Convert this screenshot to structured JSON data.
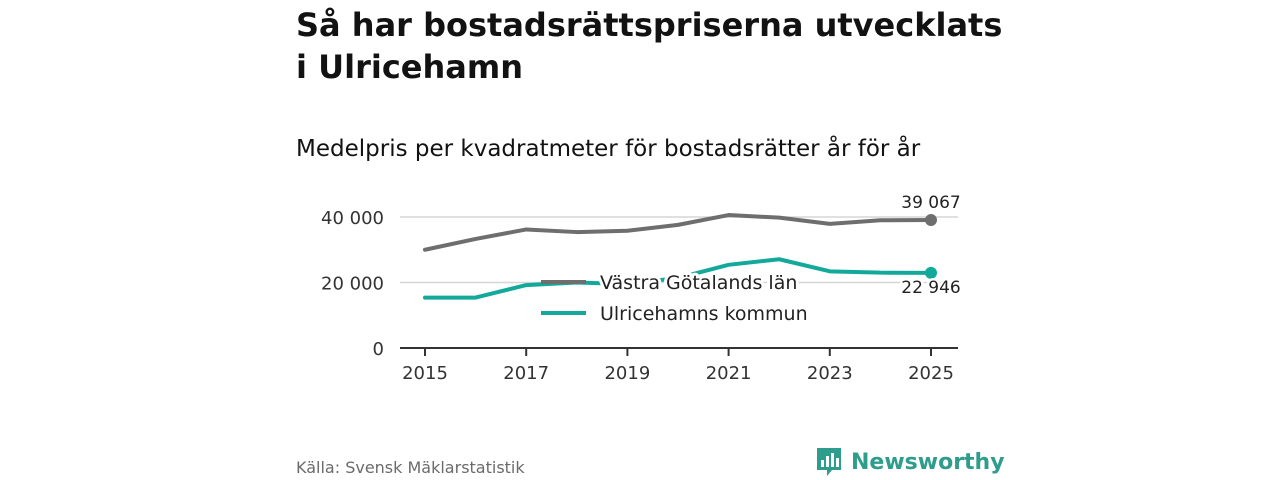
{
  "title": "Så har bostadsrättspriserna utvecklats i Ulricehamn",
  "subtitle": "Medelpris per kvadratmeter för bostadsrätter år för år",
  "source": "Källa: Svensk Mäklarstatistik",
  "brand": "Newsworthy",
  "colors": {
    "regional": "#6e6e6e",
    "municipal": "#13a99a",
    "brand": "#2e9d8c"
  },
  "chart_data": {
    "type": "line",
    "title": "Medelpris per kvadratmeter för bostadsrätter år för år",
    "x": [
      2015,
      2016,
      2017,
      2018,
      2019,
      2020,
      2021,
      2022,
      2023,
      2024,
      2025
    ],
    "xticks": [
      "2015",
      "2017",
      "2019",
      "2021",
      "2023",
      "2025"
    ],
    "yticks": [
      "0",
      "20 000",
      "40 000"
    ],
    "ylim": [
      0,
      44000
    ],
    "series": [
      {
        "name": "Västra Götalands län",
        "values": [
          30000,
          33300,
          36200,
          35400,
          35800,
          37600,
          40600,
          39800,
          37900,
          39000,
          39067
        ],
        "end_label": "39 067"
      },
      {
        "name": "Ulricehamns kommun",
        "values": [
          15400,
          15400,
          19200,
          20000,
          19500,
          21400,
          25400,
          27100,
          23400,
          23000,
          22946
        ],
        "end_label": "22 946"
      }
    ],
    "legend": "inside-center",
    "grid": true
  }
}
